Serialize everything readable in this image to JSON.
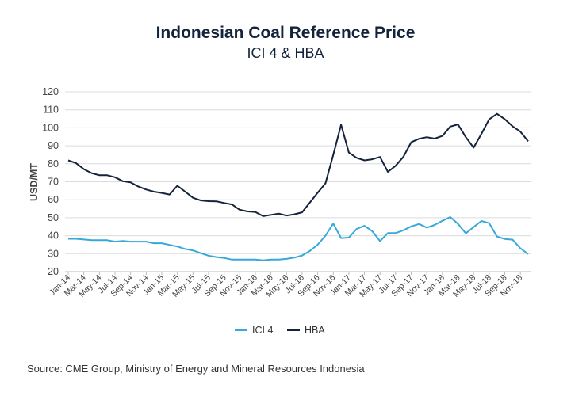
{
  "chart_data": {
    "type": "line",
    "title": "Indonesian Coal Reference Price",
    "subtitle": "ICI 4 & HBA",
    "xlabel": "",
    "ylabel": "USD/MT",
    "ylim": [
      20,
      120
    ],
    "yticks": [
      20,
      30,
      40,
      50,
      60,
      70,
      80,
      90,
      100,
      110,
      120
    ],
    "grid": true,
    "legend_position": "bottom",
    "x_tick_labels": [
      "Jan-14",
      "Mar-14",
      "May-14",
      "Jul-14",
      "Sep-14",
      "Nov-14",
      "Jan-15",
      "Mar-15",
      "May-15",
      "Jul-15",
      "Sep-15",
      "Nov-15",
      "Jan-16",
      "Mar-16",
      "May-16",
      "Jul-16",
      "Sep-16",
      "Nov-16",
      "Jan-17",
      "Mar-17",
      "May-17",
      "Jul-17",
      "Sep-17",
      "Nov-17",
      "Jan-18",
      "Mar-18",
      "May-18",
      "Jul-18",
      "Sep-18",
      "Nov-18"
    ],
    "x_start": "Jan-14",
    "x_end": "Dec-18",
    "series": [
      {
        "name": "ICI 4",
        "color": "#36a9d8",
        "values": [
          38.3,
          38.3,
          37.9,
          37.5,
          37.5,
          37.5,
          36.7,
          37.1,
          36.7,
          36.7,
          36.7,
          35.8,
          35.8,
          34.9,
          34.0,
          32.6,
          31.8,
          30.3,
          28.9,
          28.1,
          27.6,
          26.7,
          26.7,
          26.7,
          26.7,
          26.3,
          26.7,
          26.7,
          27.1,
          27.8,
          29.0,
          31.5,
          35.0,
          40.0,
          46.8,
          38.7,
          39.0,
          43.8,
          45.5,
          42.5,
          37.0,
          41.5,
          41.5,
          43.0,
          45.2,
          46.5,
          44.5,
          46.0,
          48.3,
          50.4,
          46.6,
          41.3,
          44.8,
          48.2,
          47.0,
          39.5,
          38.2,
          37.8,
          33.0,
          29.8
        ]
      },
      {
        "name": "HBA",
        "color": "#14233c",
        "values": [
          81.9,
          80.4,
          77.0,
          74.8,
          73.6,
          73.6,
          72.5,
          70.3,
          69.7,
          67.3,
          65.7,
          64.5,
          63.8,
          62.9,
          67.8,
          64.5,
          61.1,
          59.6,
          59.2,
          59.1,
          58.2,
          57.4,
          54.4,
          53.5,
          53.2,
          50.9,
          51.6,
          52.3,
          51.2,
          51.9,
          53.0,
          58.4,
          63.9,
          69.1,
          84.9,
          101.7,
          86.2,
          83.3,
          81.9,
          82.5,
          83.8,
          75.5,
          78.9,
          83.9,
          92.0,
          93.9,
          94.8,
          94.0,
          95.5,
          100.7,
          101.9,
          94.8,
          89.0,
          96.6,
          104.7,
          107.8,
          104.8,
          100.9,
          97.9,
          92.5
        ]
      }
    ]
  },
  "source": "Source: CME Group, Ministry of Energy and Mineral Resources Indonesia"
}
